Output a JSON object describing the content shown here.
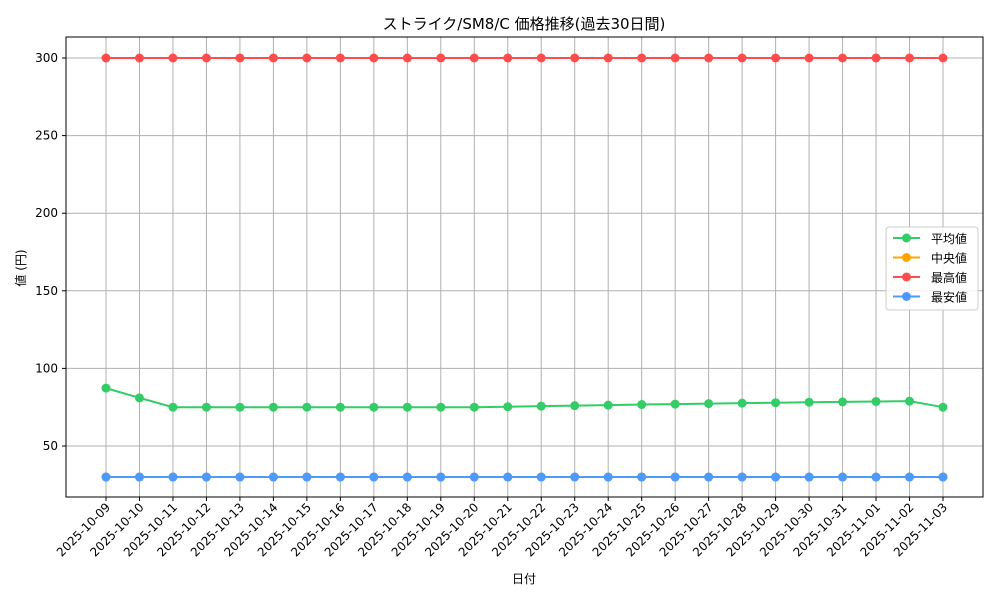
{
  "chart_data": {
    "type": "line",
    "title": "ストライク/SM8/C 価格推移(過去30日間)",
    "xlabel": "日付",
    "ylabel": "値 (円)",
    "ylim": [
      16,
      314
    ],
    "yticks": [
      50,
      100,
      150,
      200,
      250,
      300
    ],
    "grid": true,
    "legend_position": "right-center",
    "categories": [
      "2025-10-09",
      "2025-10-10",
      "2025-10-11",
      "2025-10-12",
      "2025-10-13",
      "2025-10-14",
      "2025-10-15",
      "2025-10-16",
      "2025-10-17",
      "2025-10-18",
      "2025-10-19",
      "2025-10-20",
      "2025-10-21",
      "2025-10-22",
      "2025-10-23",
      "2025-10-24",
      "2025-10-25",
      "2025-10-26",
      "2025-10-27",
      "2025-10-28",
      "2025-10-29",
      "2025-10-30",
      "2025-10-31",
      "2025-11-01",
      "2025-11-02",
      "2025-11-03"
    ],
    "series": [
      {
        "name": "平均値",
        "color": "#33cc66",
        "values": [
          87.3,
          81,
          75,
          75,
          75,
          75,
          75,
          75,
          75,
          75,
          75,
          75,
          75.3,
          75.7,
          76,
          76.3,
          76.7,
          77,
          77.3,
          77.6,
          77.9,
          78.2,
          78.4,
          78.7,
          78.9,
          75
        ]
      },
      {
        "name": "中央値",
        "color": "#ffa500",
        "values": [
          30,
          30,
          30,
          30,
          30,
          30,
          30,
          30,
          30,
          30,
          30,
          30,
          30,
          30,
          30,
          30,
          30,
          30,
          30,
          30,
          30,
          30,
          30,
          30,
          30,
          30
        ]
      },
      {
        "name": "最高値",
        "color": "#ff4d4d",
        "values": [
          300,
          300,
          300,
          300,
          300,
          300,
          300,
          300,
          300,
          300,
          300,
          300,
          300,
          300,
          300,
          300,
          300,
          300,
          300,
          300,
          300,
          300,
          300,
          300,
          300,
          300
        ]
      },
      {
        "name": "最安値",
        "color": "#4d9aff",
        "values": [
          30,
          30,
          30,
          30,
          30,
          30,
          30,
          30,
          30,
          30,
          30,
          30,
          30,
          30,
          30,
          30,
          30,
          30,
          30,
          30,
          30,
          30,
          30,
          30,
          30,
          30
        ]
      }
    ]
  }
}
